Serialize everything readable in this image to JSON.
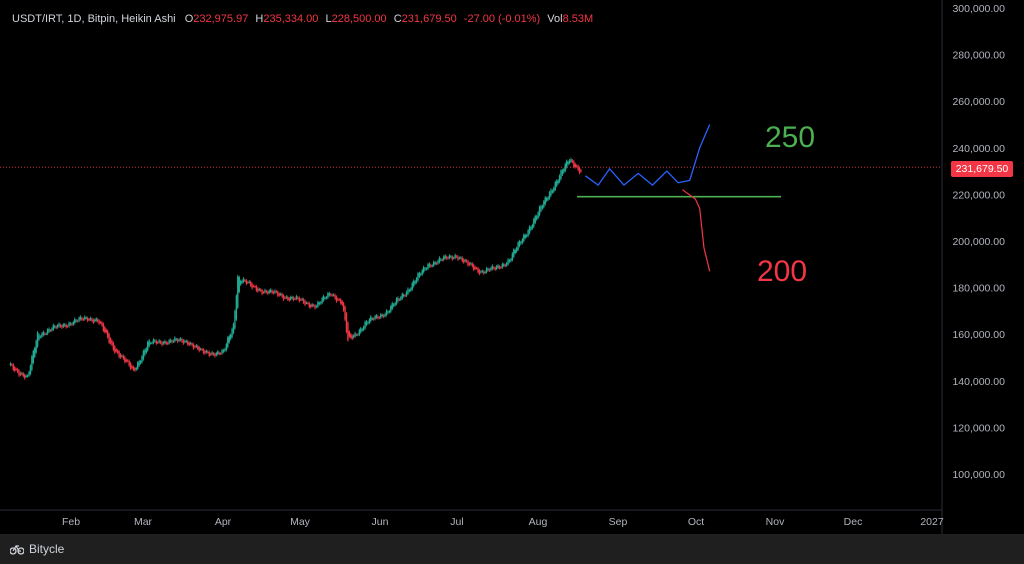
{
  "legend": {
    "symbol": "USDT/IRT, 1D, Bitpin, Heikin Ashi",
    "o_label": "O",
    "o_value": "232,975.97",
    "h_label": "H",
    "h_value": "235,334.00",
    "l_label": "L",
    "l_value": "228,500.00",
    "c_label": "C",
    "c_value": "231,679.50",
    "change": "-27.00 (-0.01%)",
    "vol_label": "Vol",
    "vol_value": "8.53M"
  },
  "price_tag": "231,679.50",
  "footer": {
    "brand": "Bitycle"
  },
  "colors": {
    "up": "#22ab94",
    "down": "#f23645",
    "support": "#4caf50",
    "bull_path": "#2962ff",
    "bear_path": "#f23645"
  },
  "chart_data": {
    "type": "candlestick",
    "style": "Heikin Ashi",
    "yticks": [
      "100,000.00",
      "120,000.00",
      "140,000.00",
      "160,000.00",
      "180,000.00",
      "200,000.00",
      "220,000.00",
      "240,000.00",
      "260,000.00",
      "280,000.00",
      "300,000.00"
    ],
    "ytick_values": [
      100000,
      120000,
      140000,
      160000,
      180000,
      200000,
      220000,
      240000,
      260000,
      280000,
      300000
    ],
    "xticks": [
      "Feb",
      "Mar",
      "Apr",
      "May",
      "Jun",
      "Jul",
      "Aug",
      "Sep",
      "Oct",
      "Nov",
      "Dec",
      "2027"
    ],
    "ylim": [
      90000,
      300000
    ],
    "last_price": 231679.5,
    "support_level": 219000,
    "annotations": [
      {
        "text": "250",
        "color": "#4caf50"
      },
      {
        "text": "200",
        "color": "#f23645"
      }
    ],
    "path_keypoints": [
      [
        40,
        147000
      ],
      [
        53,
        141000
      ],
      [
        60,
        160000
      ],
      [
        78,
        164000
      ],
      [
        95,
        167000
      ],
      [
        102,
        166000
      ],
      [
        112,
        155000
      ],
      [
        127,
        144000
      ],
      [
        137,
        156000
      ],
      [
        150,
        157000
      ],
      [
        165,
        157000
      ],
      [
        175,
        152000
      ],
      [
        190,
        152000
      ],
      [
        197,
        164000
      ],
      [
        200,
        185000
      ],
      [
        210,
        180000
      ],
      [
        222,
        178000
      ],
      [
        240,
        175000
      ],
      [
        255,
        172000
      ],
      [
        265,
        178000
      ],
      [
        273,
        173000
      ],
      [
        277,
        157000
      ],
      [
        290,
        165000
      ],
      [
        305,
        170000
      ],
      [
        320,
        180000
      ],
      [
        333,
        190000
      ],
      [
        343,
        192000
      ],
      [
        353,
        194000
      ],
      [
        360,
        190000
      ],
      [
        370,
        187000
      ],
      [
        380,
        188000
      ],
      [
        390,
        192000
      ],
      [
        400,
        202000
      ],
      [
        410,
        212000
      ],
      [
        419,
        222000
      ],
      [
        425,
        228000
      ],
      [
        432,
        235000
      ],
      [
        440,
        230000
      ]
    ],
    "projection_up": [
      [
        443,
        228000
      ],
      [
        452,
        224000
      ],
      [
        460,
        231000
      ],
      [
        470,
        224000
      ],
      [
        480,
        229000
      ],
      [
        490,
        224000
      ],
      [
        500,
        230000
      ],
      [
        508,
        225000
      ],
      [
        516,
        226000
      ],
      [
        523,
        240000
      ],
      [
        530,
        250000
      ]
    ],
    "projection_down": [
      [
        511,
        222000
      ],
      [
        520,
        218000
      ],
      [
        523,
        214000
      ],
      [
        526,
        197000
      ],
      [
        530,
        187000
      ]
    ]
  }
}
